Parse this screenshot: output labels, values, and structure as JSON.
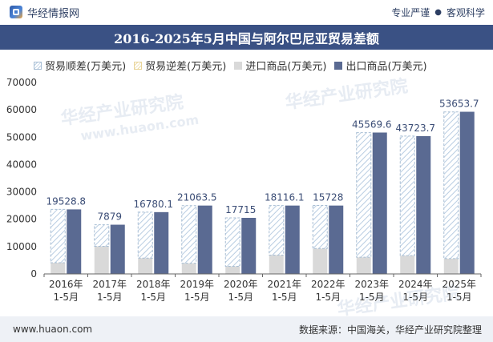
{
  "header": {
    "brand": "华经情报网",
    "tags": [
      "专业严谨",
      "客观科学"
    ]
  },
  "title": "2016-2025年5月中国与阿尔巴尼亚贸易差额",
  "legend": {
    "surplus": "贸易顺差(万美元)",
    "deficit": "贸易逆差(万美元)",
    "import": "进口商品(万美元)",
    "export": "出口商品(万美元)"
  },
  "watermarks": [
    "华经产业研究院",
    "www.huaon.com",
    "华经产业研究院",
    "华经产业研究院"
  ],
  "footer": {
    "url": "www.huaon.com",
    "source": "数据来源：中国海关，华经产业研究院整理"
  },
  "colors": {
    "export": "#5a6a92",
    "import": "#d9d9d9",
    "surplus_hatch": "#b9cde2",
    "surplus_border": "#a8bed4",
    "deficit_hatch": "#ecdba6",
    "label": "#3b4d76"
  },
  "chart_data": {
    "type": "bar",
    "categories": [
      "2016年\n1-5月",
      "2017年\n1-5月",
      "2018年\n1-5月",
      "2019年\n1-5月",
      "2020年\n1-5月",
      "2021年\n1-5月",
      "2022年\n1-5月",
      "2023年\n1-5月",
      "2024年\n1-5月",
      "2025年\n1-5月"
    ],
    "series": [
      {
        "name": "贸易顺差(万美元)",
        "values": [
          19528.8,
          7879,
          16780.1,
          21063.5,
          17715,
          18116.1,
          15728,
          45569.6,
          43723.7,
          53653.7
        ]
      },
      {
        "name": "贸易逆差(万美元)",
        "values": [
          0,
          0,
          0,
          0,
          0,
          0,
          0,
          0,
          0,
          0
        ]
      },
      {
        "name": "进口商品(万美元)",
        "values": [
          4100,
          10100,
          5800,
          3900,
          2800,
          6900,
          9300,
          6100,
          6700,
          5600
        ]
      },
      {
        "name": "出口商品(万美元)",
        "values": [
          23600,
          18000,
          22600,
          25000,
          20500,
          25000,
          25000,
          51700,
          50400,
          59300
        ]
      }
    ],
    "data_labels": [
      "19528.8",
      "7879",
      "16780.1",
      "21063.5",
      "17715",
      "18116.1",
      "15728",
      "45569.6",
      "43723.7",
      "53653.7"
    ],
    "ylim": [
      0,
      70000
    ],
    "yticks": [
      "0",
      "10000",
      "20000",
      "30000",
      "40000",
      "50000",
      "60000",
      "70000"
    ],
    "ytick_values": [
      0,
      10000,
      20000,
      30000,
      40000,
      50000,
      60000,
      70000
    ],
    "grid": false,
    "legend_position": "top-left"
  }
}
